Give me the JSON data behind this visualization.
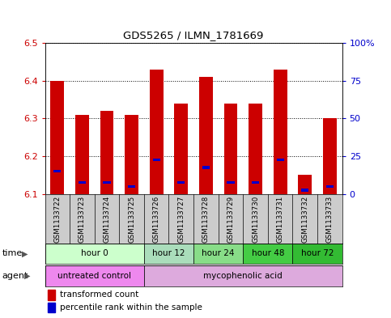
{
  "title": "GDS5265 / ILMN_1781669",
  "samples": [
    "GSM1133722",
    "GSM1133723",
    "GSM1133724",
    "GSM1133725",
    "GSM1133726",
    "GSM1133727",
    "GSM1133728",
    "GSM1133729",
    "GSM1133730",
    "GSM1133731",
    "GSM1133732",
    "GSM1133733"
  ],
  "red_tops": [
    6.4,
    6.31,
    6.32,
    6.31,
    6.43,
    6.34,
    6.41,
    6.34,
    6.34,
    6.43,
    6.15,
    6.3
  ],
  "blue_vals": [
    6.16,
    6.13,
    6.13,
    6.12,
    6.19,
    6.13,
    6.17,
    6.13,
    6.13,
    6.19,
    6.11,
    6.12
  ],
  "base": 6.1,
  "ylim": [
    6.1,
    6.5
  ],
  "yticks_left": [
    6.1,
    6.2,
    6.3,
    6.4,
    6.5
  ],
  "yticks_right": [
    0,
    25,
    50,
    75,
    100
  ],
  "ytick_labels_right": [
    "0",
    "25",
    "50",
    "75",
    "100%"
  ],
  "bar_color": "#cc0000",
  "blue_color": "#0000cc",
  "bar_width": 0.55,
  "time_groups": [
    {
      "label": "hour 0",
      "start": 0,
      "end": 3,
      "color": "#ccffcc"
    },
    {
      "label": "hour 12",
      "start": 4,
      "end": 5,
      "color": "#aaeebb"
    },
    {
      "label": "hour 24",
      "start": 6,
      "end": 7,
      "color": "#88dd88"
    },
    {
      "label": "hour 48",
      "start": 8,
      "end": 9,
      "color": "#44cc44"
    },
    {
      "label": "hour 72",
      "start": 10,
      "end": 11,
      "color": "#22bb22"
    }
  ],
  "agent_groups": [
    {
      "label": "untreated control",
      "start": 0,
      "end": 3,
      "color": "#ee88ee"
    },
    {
      "label": "mycophenolic acid",
      "start": 4,
      "end": 11,
      "color": "#ddaadd"
    }
  ],
  "legend_items": [
    {
      "label": "transformed count",
      "color": "#cc0000"
    },
    {
      "label": "percentile rank within the sample",
      "color": "#0000cc"
    }
  ],
  "tick_label_color_left": "#cc0000",
  "ylabel_right_color": "#0000cc",
  "bg_color": "#ffffff",
  "plot_bg": "#ffffff",
  "sample_bg": "#cccccc",
  "grid_color": "#000000"
}
